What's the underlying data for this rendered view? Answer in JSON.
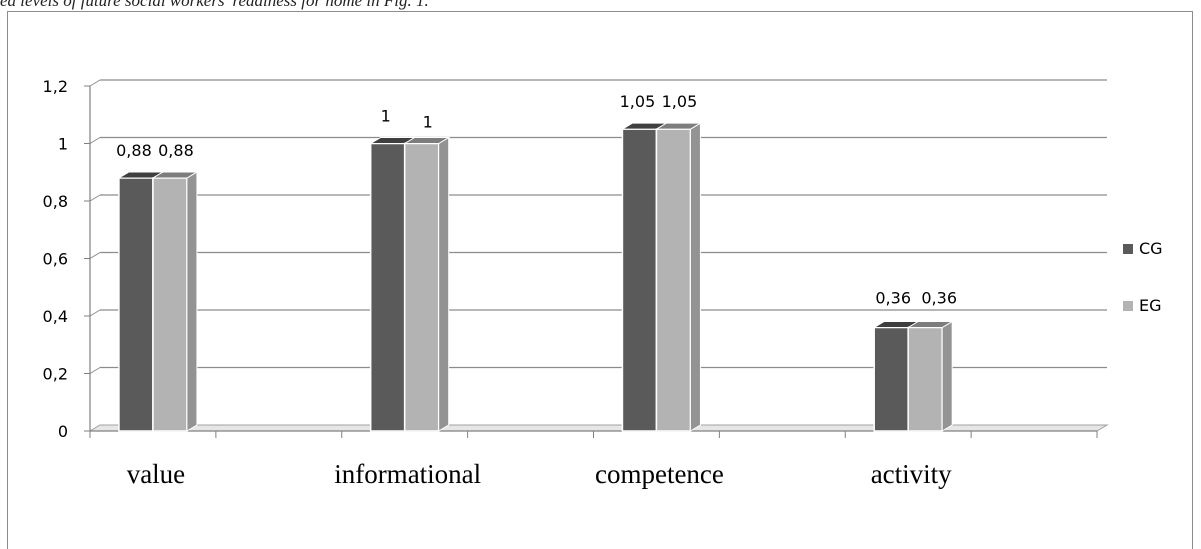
{
  "caption": "ed levels of future social workers' readiness for home in Fig. 1.",
  "chart_data": {
    "type": "bar",
    "categories": [
      "value",
      "informational",
      "competence",
      "activity"
    ],
    "series": [
      {
        "name": "CG",
        "values": [
          0.88,
          1,
          1.05,
          0.36
        ],
        "labels": [
          "0,88",
          "1",
          "1,05",
          "0,36"
        ],
        "color": "#5a5a5a"
      },
      {
        "name": "EG",
        "values": [
          0.88,
          1,
          1.05,
          0.36
        ],
        "labels": [
          "0,88",
          "1",
          "1,05",
          "0,36"
        ],
        "color": "#b3b3b3"
      }
    ],
    "yticks": [
      "0",
      "0,2",
      "0,4",
      "0,6",
      "0,8",
      "1",
      "1,2"
    ],
    "ylim": [
      0,
      1.2
    ],
    "grid": true,
    "legend_position": "right",
    "title": "",
    "xlabel": "",
    "ylabel": ""
  }
}
